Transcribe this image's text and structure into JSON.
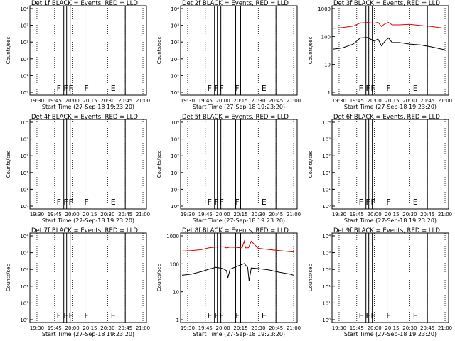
{
  "chart_data": [
    {
      "type": "line",
      "title": "Det 1f BLACK = Events, RED = LLD",
      "xlabel": "Start Time (27-Sep-18 19:23:20)",
      "ylabel": "Counts/sec",
      "xticks": [
        "19:30",
        "19:45",
        "20:00",
        "20:15",
        "20:30",
        "20:45",
        "21:00"
      ],
      "yticks": [
        "10⁴",
        "10³",
        "10²",
        "10¹",
        "10¹",
        "10⁰"
      ],
      "flags": [
        "F",
        "F",
        "F",
        "F",
        "E"
      ],
      "series": []
    },
    {
      "type": "line",
      "title": "Det 2f BLACK = Events, RED = LLD",
      "xlabel": "Start Time (27-Sep-18 19:23:20)",
      "ylabel": "Counts/sec",
      "xticks": [
        "19:30",
        "19:45",
        "20:00",
        "20:15",
        "20:30",
        "20:45",
        "21:00"
      ],
      "yticks": [
        "10⁴",
        "10³",
        "10²",
        "10¹",
        "10¹",
        "10⁰"
      ],
      "flags": [
        "F",
        "F",
        "F",
        "F",
        "E"
      ],
      "series": []
    },
    {
      "type": "line",
      "title": "Det 3f BLACK = Events, RED = LLD",
      "xlabel": "Start Time (27-Sep-18 19:23:20)",
      "ylabel": "Counts/sec",
      "xticks": [
        "19:30",
        "19:45",
        "20:00",
        "20:15",
        "20:30",
        "20:45",
        "21:00"
      ],
      "yticks": [
        "1000",
        "100",
        "10",
        "1"
      ],
      "flags": [
        "F",
        "F",
        "F",
        "F",
        "E"
      ],
      "series": [
        {
          "color": "#e00000",
          "x": [
            19.42,
            19.55,
            19.7,
            19.8,
            19.9,
            20.0,
            20.05,
            20.1,
            20.15,
            20.2,
            20.25,
            20.35,
            20.5,
            20.65,
            20.8,
            20.95,
            21.0
          ],
          "y": [
            280,
            300,
            340,
            450,
            470,
            440,
            480,
            330,
            420,
            470,
            380,
            380,
            400,
            360,
            330,
            290,
            280
          ]
        },
        {
          "color": "#000000",
          "x": [
            19.42,
            19.55,
            19.7,
            19.8,
            19.9,
            20.0,
            20.05,
            20.1,
            20.15,
            20.2,
            20.25,
            20.35,
            20.5,
            20.65,
            20.8,
            20.95,
            21.0
          ],
          "y": [
            45,
            50,
            70,
            120,
            125,
            90,
            110,
            60,
            90,
            120,
            80,
            80,
            70,
            65,
            55,
            45,
            42
          ]
        }
      ]
    },
    {
      "type": "line",
      "title": "Det 4f BLACK = Events, RED = LLD",
      "xlabel": "Start Time (27-Sep-18 19:23:20)",
      "ylabel": "Counts/sec",
      "xticks": [
        "19:30",
        "19:45",
        "20:00",
        "20:15",
        "20:30",
        "20:45",
        "21:00"
      ],
      "yticks": [
        "10⁴",
        "10³",
        "10²",
        "10¹",
        "10¹",
        "10⁰"
      ],
      "flags": [
        "F",
        "F",
        "F",
        "F",
        "E"
      ],
      "series": []
    },
    {
      "type": "line",
      "title": "Det 5f BLACK = Events, RED = LLD",
      "xlabel": "Start Time (27-Sep-18 19:23:20)",
      "ylabel": "Counts/sec",
      "xticks": [
        "19:30",
        "19:45",
        "20:00",
        "20:15",
        "20:30",
        "20:45",
        "21:00"
      ],
      "yticks": [
        "10⁴",
        "10³",
        "10²",
        "10¹",
        "10¹",
        "10⁰"
      ],
      "flags": [
        "F",
        "F",
        "F",
        "F",
        "E"
      ],
      "series": []
    },
    {
      "type": "line",
      "title": "Det 6f BLACK = Events, RED = LLD",
      "xlabel": "Start Time (27-Sep-18 19:23:20)",
      "ylabel": "Counts/sec",
      "xticks": [
        "19:30",
        "19:45",
        "20:00",
        "20:15",
        "20:30",
        "20:45",
        "21:00"
      ],
      "yticks": [
        "10⁴",
        "10³",
        "10²",
        "10¹",
        "10¹",
        "10⁰"
      ],
      "flags": [
        "F",
        "F",
        "F",
        "F",
        "E"
      ],
      "series": []
    },
    {
      "type": "line",
      "title": "Det 7f BLACK = Events, RED = LLD",
      "xlabel": "Start Time (27-Sep-18 19:23:20)",
      "ylabel": "Counts/sec",
      "xticks": [
        "19:30",
        "19:45",
        "20:00",
        "20:15",
        "20:30",
        "20:45",
        "21:00"
      ],
      "yticks": [
        "10⁴",
        "10³",
        "10²",
        "10¹",
        "10¹",
        "10⁰"
      ],
      "flags": [
        "F",
        "F",
        "F",
        "F",
        "E"
      ],
      "series": []
    },
    {
      "type": "line",
      "title": "Det 8f BLACK = Events, RED = LLD",
      "xlabel": "Start Time (27-Sep-18 19:23:20)",
      "ylabel": "Counts/sec",
      "xticks": [
        "19:30",
        "19:45",
        "20:00",
        "20:15",
        "20:30",
        "20:45",
        "21:00"
      ],
      "yticks": [
        "1000",
        "100",
        "10",
        "1"
      ],
      "flags": [
        "F",
        "F",
        "F",
        "F",
        "E"
      ],
      "series": [
        {
          "color": "#e00000",
          "x": [
            19.42,
            19.55,
            19.7,
            19.8,
            19.9,
            20.0,
            20.05,
            20.1,
            20.2,
            20.27,
            20.3,
            20.32,
            20.36,
            20.4,
            20.5,
            20.65,
            20.8,
            20.95,
            21.0
          ],
          "y": [
            420,
            440,
            480,
            560,
            600,
            620,
            560,
            600,
            580,
            560,
            1000,
            560,
            560,
            1000,
            540,
            480,
            440,
            400,
            390
          ]
        },
        {
          "color": "#000000",
          "x": [
            19.42,
            19.55,
            19.7,
            19.8,
            19.9,
            20.0,
            20.05,
            20.07,
            20.1,
            20.2,
            20.3,
            20.35,
            20.37,
            20.4,
            20.5,
            20.65,
            20.8,
            20.95,
            21.0
          ],
          "y": [
            50,
            55,
            70,
            85,
            100,
            90,
            75,
            40,
            85,
            110,
            140,
            100,
            30,
            95,
            90,
            80,
            65,
            55,
            50
          ]
        }
      ]
    },
    {
      "type": "line",
      "title": "Det 9f BLACK = Events, RED = LLD",
      "xlabel": "Start Time (27-Sep-18 19:23:20)",
      "ylabel": "Counts/sec",
      "xticks": [
        "19:30",
        "19:45",
        "20:00",
        "20:15",
        "20:30",
        "20:45",
        "21:00"
      ],
      "yticks": [
        "10⁴",
        "10³",
        "10²",
        "10¹",
        "10¹",
        "10⁰"
      ],
      "flags": [
        "F",
        "F",
        "F",
        "F",
        "E"
      ],
      "series": []
    }
  ]
}
